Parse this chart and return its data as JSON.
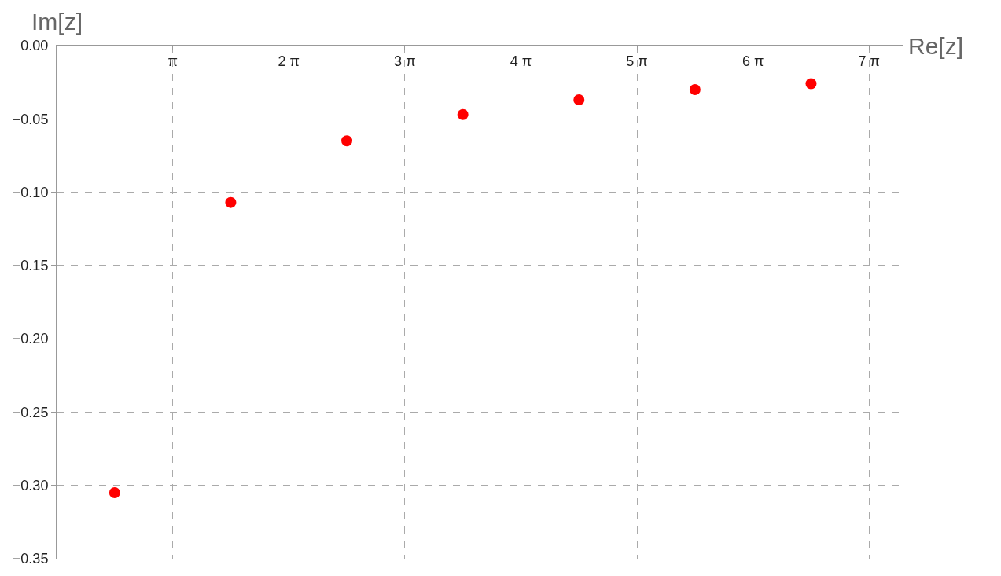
{
  "chart_data": {
    "type": "scatter",
    "xlabel": "Re[z]",
    "ylabel": "Im[z]",
    "x": [
      1.571,
      4.712,
      7.854,
      10.996,
      14.137,
      17.279,
      20.42
    ],
    "series": [
      {
        "color": "#ff0000",
        "values": [
          -0.305,
          -0.107,
          -0.065,
          -0.047,
          -0.037,
          -0.03,
          -0.026
        ]
      }
    ],
    "xlim": [
      0,
      22.9
    ],
    "xticks": [
      {
        "value": 3.1416,
        "label": "π"
      },
      {
        "value": 6.2832,
        "label": "2 π"
      },
      {
        "value": 9.4248,
        "label": "3 π"
      },
      {
        "value": 12.5664,
        "label": "4 π"
      },
      {
        "value": 15.708,
        "label": "5 π"
      },
      {
        "value": 18.8496,
        "label": "6 π"
      },
      {
        "value": 21.9911,
        "label": "7 π"
      }
    ],
    "ylim": [
      -0.35,
      0
    ],
    "yticks": [
      {
        "value": 0,
        "label": "0.00"
      },
      {
        "value": -0.05,
        "label": "−0.05"
      },
      {
        "value": -0.1,
        "label": "−0.10"
      },
      {
        "value": -0.15,
        "label": "−0.15"
      },
      {
        "value": -0.2,
        "label": "−0.20"
      },
      {
        "value": -0.25,
        "label": "−0.25"
      },
      {
        "value": -0.3,
        "label": "−0.30"
      },
      {
        "value": -0.35,
        "label": "−0.35"
      }
    ],
    "grid": true,
    "marker": "circle",
    "legend": false
  }
}
